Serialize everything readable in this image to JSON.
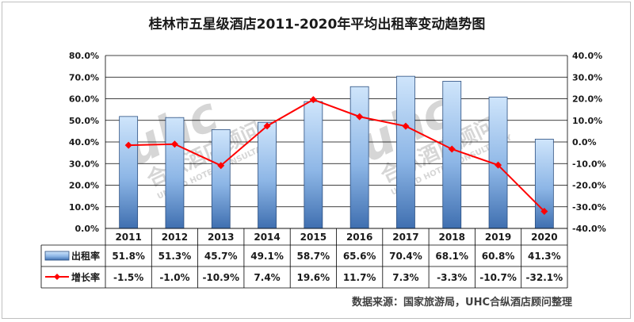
{
  "title": "桂林市五星级酒店2011-2020年平均出租率变动趋势图",
  "source_note": "数据来源：国家旅游局，UHC合纵酒店顾问整理",
  "watermark": {
    "logo_text": "uhc",
    "name": "合纵酒店顾问",
    "subtitle": "UNITED HOTEL CONSULTANCY"
  },
  "colors": {
    "bar_top": "#cfe5fb",
    "bar_bottom": "#3f6fb0",
    "bar_stroke": "#2b4f80",
    "line": "#ff0000",
    "grid": "#000000"
  },
  "chart_data": {
    "type": "bar",
    "categories": [
      "2011",
      "2012",
      "2013",
      "2014",
      "2015",
      "2016",
      "2017",
      "2018",
      "2019",
      "2020"
    ],
    "series": [
      {
        "name": "出租率",
        "type": "bar",
        "axis": "left",
        "values": [
          51.8,
          51.3,
          45.7,
          49.1,
          58.7,
          65.6,
          70.4,
          68.1,
          60.8,
          41.3
        ],
        "labels": [
          "51.8%",
          "51.3%",
          "45.7%",
          "49.1%",
          "58.7%",
          "65.6%",
          "70.4%",
          "68.1%",
          "60.8%",
          "41.3%"
        ]
      },
      {
        "name": "增长率",
        "type": "line",
        "axis": "right",
        "values": [
          -1.5,
          -1.0,
          -10.9,
          7.4,
          19.6,
          11.7,
          7.3,
          -3.3,
          -10.7,
          -32.1
        ],
        "labels": [
          "-1.5%",
          "-1.0%",
          "-10.9%",
          "7.4%",
          "19.6%",
          "11.7%",
          "7.3%",
          "-3.3%",
          "-10.7%",
          "-32.1%"
        ]
      }
    ],
    "y_left": {
      "range": [
        0,
        80
      ],
      "ticks": [
        "0.0%",
        "10.0%",
        "20.0%",
        "30.0%",
        "40.0%",
        "50.0%",
        "60.0%",
        "70.0%",
        "80.0%"
      ]
    },
    "y_right": {
      "range": [
        -40,
        40
      ],
      "ticks": [
        "-40.0%",
        "-30.0%",
        "-20.0%",
        "-10.0%",
        "0.0%",
        "10.0%",
        "20.0%",
        "30.0%",
        "40.0%"
      ]
    },
    "grid": true,
    "legend": "data-table"
  }
}
